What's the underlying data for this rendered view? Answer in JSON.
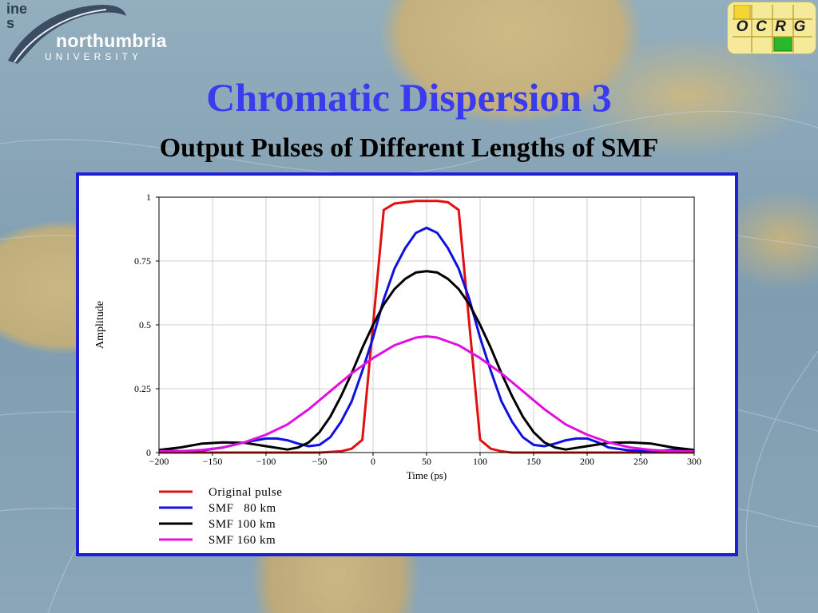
{
  "logo": {
    "name": "northumbria",
    "sub": "UNIVERSITY",
    "fragment_top": "ine",
    "fragment_bottom": "s"
  },
  "badge": {
    "letters": [
      "O",
      "C",
      "R",
      "G"
    ],
    "colors": {
      "yellow": "#f5d530",
      "green": "#2bb82b",
      "border": "#b89a20"
    }
  },
  "slide": {
    "title": "Chromatic Dispersion 3",
    "subtitle": "Output Pulses of Different Lengths of SMF"
  },
  "chart_data": {
    "type": "line",
    "xlabel": "Time (ps)",
    "ylabel": "Amplitude",
    "xlim": [
      -200,
      300
    ],
    "ylim": [
      0,
      1
    ],
    "x_ticks": [
      -200,
      -150,
      -100,
      -50,
      0,
      50,
      100,
      150,
      200,
      250,
      300
    ],
    "x_tick_labels": [
      "−200",
      "−150",
      "−100",
      "−50",
      "0",
      "50",
      "100",
      "150",
      "200",
      "250",
      "300"
    ],
    "y_ticks": [
      0,
      0.25,
      0.5,
      0.75,
      1
    ],
    "y_tick_labels": [
      "0",
      "0.25",
      "0.5",
      "0.75",
      "1"
    ],
    "grid": true,
    "legend_position": "bottom-left below plot",
    "series": [
      {
        "name": "Original pulse",
        "color": "#e01010",
        "x": [
          -200,
          -150,
          -100,
          -50,
          -30,
          -20,
          -10,
          0,
          10,
          20,
          30,
          40,
          50,
          60,
          70,
          80,
          90,
          100,
          110,
          120,
          130,
          150,
          200,
          250,
          300
        ],
        "y": [
          0.0,
          0.0,
          0.0,
          0.0,
          0.005,
          0.015,
          0.05,
          0.5,
          0.95,
          0.975,
          0.98,
          0.985,
          0.985,
          0.985,
          0.98,
          0.95,
          0.5,
          0.05,
          0.015,
          0.005,
          0.0,
          0.0,
          0.0,
          0.0,
          0.0
        ]
      },
      {
        "name": "SMF   80 km",
        "color": "#1010e0",
        "x": [
          -200,
          -180,
          -160,
          -140,
          -120,
          -100,
          -90,
          -80,
          -70,
          -60,
          -50,
          -40,
          -30,
          -20,
          -10,
          0,
          10,
          20,
          30,
          40,
          50,
          60,
          70,
          80,
          90,
          100,
          110,
          120,
          130,
          140,
          150,
          160,
          170,
          180,
          190,
          200,
          210,
          220,
          240,
          260,
          280,
          300
        ],
        "y": [
          0.01,
          0.005,
          0.008,
          0.02,
          0.04,
          0.055,
          0.055,
          0.048,
          0.035,
          0.025,
          0.03,
          0.06,
          0.12,
          0.2,
          0.32,
          0.45,
          0.6,
          0.72,
          0.8,
          0.86,
          0.88,
          0.86,
          0.8,
          0.72,
          0.6,
          0.45,
          0.32,
          0.2,
          0.12,
          0.06,
          0.03,
          0.025,
          0.035,
          0.048,
          0.055,
          0.055,
          0.04,
          0.02,
          0.008,
          0.005,
          0.01,
          0.01
        ]
      },
      {
        "name": "SMF 100 km",
        "color": "#000000",
        "x": [
          -200,
          -180,
          -160,
          -140,
          -120,
          -100,
          -80,
          -70,
          -60,
          -50,
          -40,
          -30,
          -20,
          -10,
          0,
          10,
          20,
          30,
          40,
          50,
          60,
          70,
          80,
          90,
          100,
          110,
          120,
          130,
          140,
          150,
          160,
          170,
          180,
          200,
          220,
          240,
          260,
          280,
          300
        ],
        "y": [
          0.01,
          0.02,
          0.035,
          0.04,
          0.038,
          0.025,
          0.012,
          0.02,
          0.04,
          0.08,
          0.14,
          0.22,
          0.31,
          0.41,
          0.5,
          0.58,
          0.64,
          0.68,
          0.705,
          0.71,
          0.705,
          0.68,
          0.64,
          0.58,
          0.5,
          0.41,
          0.31,
          0.22,
          0.14,
          0.08,
          0.04,
          0.02,
          0.012,
          0.025,
          0.038,
          0.04,
          0.035,
          0.02,
          0.01
        ]
      },
      {
        "name": "SMF 160 km",
        "color": "#e010e0",
        "x": [
          -200,
          -180,
          -160,
          -140,
          -120,
          -100,
          -80,
          -60,
          -40,
          -20,
          0,
          20,
          40,
          50,
          60,
          80,
          100,
          120,
          140,
          160,
          180,
          200,
          220,
          240,
          260,
          280,
          300
        ],
        "y": [
          0.005,
          0.005,
          0.01,
          0.02,
          0.04,
          0.07,
          0.11,
          0.17,
          0.24,
          0.31,
          0.37,
          0.42,
          0.45,
          0.455,
          0.45,
          0.42,
          0.37,
          0.31,
          0.24,
          0.17,
          0.11,
          0.07,
          0.04,
          0.02,
          0.01,
          0.005,
          0.005
        ]
      }
    ]
  }
}
